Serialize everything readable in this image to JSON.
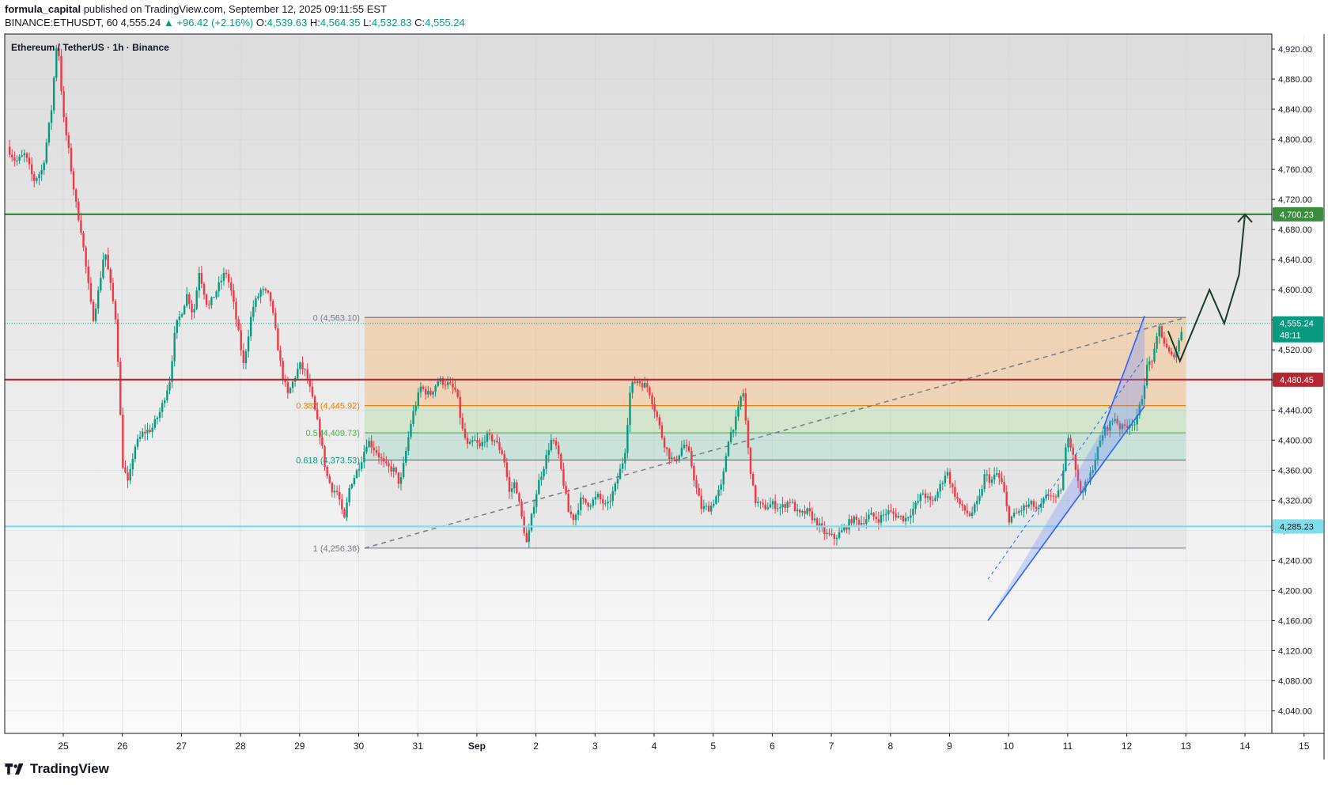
{
  "header": {
    "author": "formula_capital",
    "published": " published on TradingView.com, September 12, 2025 09:11:55 EST",
    "symbol": "BINANCE:ETHUSDT, 60",
    "last": "4,555.24",
    "change": "▲ +96.42 (+2.16%)",
    "o_label": "O:",
    "o": "4,539.63",
    "h_label": "H:",
    "h": "4,564.35",
    "l_label": "L:",
    "l": "4,532.83",
    "c_label": "C:",
    "c": "4,555.24"
  },
  "chart_title": "Ethereum / TetherUS · 1h · Binance",
  "footer": {
    "brand": "TradingView",
    "logo_icon": "tradingview-logo-icon"
  },
  "chart_data": {
    "type": "candlestick",
    "title": "Ethereum / TetherUS · 1h · Binance",
    "ylim": [
      4010,
      4940
    ],
    "y_ticks": [
      4040,
      4080,
      4120,
      4160,
      4200,
      4240,
      4280,
      4320,
      4360,
      4400,
      4440,
      4480,
      4520,
      4560,
      4600,
      4640,
      4680,
      4720,
      4760,
      4800,
      4840,
      4880,
      4920
    ],
    "y_tick_labels": [
      "4,040.00",
      "4,080.00",
      "4,120.00",
      "4,160.00",
      "4,200.00",
      "4,240.00",
      "4,280.00",
      "4,320.00",
      "4,360.00",
      "4,400.00",
      "4,440.00",
      "4,480.00",
      "4,520.00",
      "4,560.00",
      "4,600.00",
      "4,640.00",
      "4,680.00",
      "4,720.00",
      "4,760.00",
      "4,800.00",
      "4,840.00",
      "4,880.00",
      "4,920.00"
    ],
    "x_labels": [
      "25",
      "26",
      "27",
      "28",
      "29",
      "30",
      "31",
      "Sep",
      "2",
      "3",
      "4",
      "5",
      "6",
      "7",
      "8",
      "9",
      "10",
      "11",
      "12",
      "13",
      "14",
      "15"
    ],
    "x_label_days": [
      0,
      1,
      2,
      3,
      4,
      5,
      6,
      7,
      8,
      9,
      10,
      11,
      12,
      13,
      14,
      15,
      16,
      17,
      18,
      19,
      20,
      21
    ],
    "x_range_days": [
      -0.98,
      21.3
    ],
    "grid": true,
    "colors": {
      "up": "#089981",
      "down": "#f23645",
      "resistance": "#b22833",
      "target": "#388e3c",
      "support": "#80deea",
      "channel": "#2962ff"
    },
    "price_path": [
      [
        -0.95,
        4790
      ],
      [
        -0.8,
        4770
      ],
      [
        -0.65,
        4780
      ],
      [
        -0.5,
        4745
      ],
      [
        -0.35,
        4760
      ],
      [
        -0.2,
        4840
      ],
      [
        -0.1,
        4940
      ],
      [
        0.0,
        4830
      ],
      [
        0.1,
        4780
      ],
      [
        0.2,
        4720
      ],
      [
        0.3,
        4680
      ],
      [
        0.4,
        4620
      ],
      [
        0.5,
        4560
      ],
      [
        0.6,
        4600
      ],
      [
        0.7,
        4655
      ],
      [
        0.8,
        4605
      ],
      [
        0.9,
        4555
      ],
      [
        1.0,
        4370
      ],
      [
        1.1,
        4340
      ],
      [
        1.2,
        4390
      ],
      [
        1.35,
        4410
      ],
      [
        1.5,
        4415
      ],
      [
        1.65,
        4440
      ],
      [
        1.8,
        4480
      ],
      [
        1.9,
        4550
      ],
      [
        2.0,
        4570
      ],
      [
        2.1,
        4595
      ],
      [
        2.2,
        4565
      ],
      [
        2.3,
        4625
      ],
      [
        2.45,
        4575
      ],
      [
        2.6,
        4600
      ],
      [
        2.75,
        4625
      ],
      [
        2.85,
        4595
      ],
      [
        2.95,
        4550
      ],
      [
        3.05,
        4500
      ],
      [
        3.2,
        4575
      ],
      [
        3.35,
        4600
      ],
      [
        3.5,
        4590
      ],
      [
        3.6,
        4540
      ],
      [
        3.7,
        4490
      ],
      [
        3.8,
        4460
      ],
      [
        3.9,
        4480
      ],
      [
        4.0,
        4500
      ],
      [
        4.1,
        4490
      ],
      [
        4.2,
        4460
      ],
      [
        4.35,
        4405
      ],
      [
        4.45,
        4355
      ],
      [
        4.55,
        4335
      ],
      [
        4.65,
        4330
      ],
      [
        4.75,
        4290
      ],
      [
        4.85,
        4340
      ],
      [
        4.95,
        4355
      ],
      [
        5.05,
        4375
      ],
      [
        5.15,
        4400
      ],
      [
        5.3,
        4385
      ],
      [
        5.45,
        4365
      ],
      [
        5.6,
        4360
      ],
      [
        5.7,
        4340
      ],
      [
        5.8,
        4385
      ],
      [
        5.9,
        4430
      ],
      [
        6.05,
        4470
      ],
      [
        6.2,
        4460
      ],
      [
        6.35,
        4480
      ],
      [
        6.5,
        4475
      ],
      [
        6.65,
        4465
      ],
      [
        6.75,
        4415
      ],
      [
        6.85,
        4390
      ],
      [
        6.95,
        4400
      ],
      [
        7.05,
        4390
      ],
      [
        7.15,
        4405
      ],
      [
        7.3,
        4400
      ],
      [
        7.45,
        4380
      ],
      [
        7.55,
        4330
      ],
      [
        7.65,
        4345
      ],
      [
        7.75,
        4300
      ],
      [
        7.85,
        4260
      ],
      [
        7.95,
        4310
      ],
      [
        8.05,
        4345
      ],
      [
        8.15,
        4370
      ],
      [
        8.25,
        4400
      ],
      [
        8.35,
        4390
      ],
      [
        8.45,
        4350
      ],
      [
        8.55,
        4305
      ],
      [
        8.65,
        4295
      ],
      [
        8.75,
        4320
      ],
      [
        8.9,
        4315
      ],
      [
        9.05,
        4325
      ],
      [
        9.2,
        4310
      ],
      [
        9.35,
        4340
      ],
      [
        9.5,
        4380
      ],
      [
        9.6,
        4470
      ],
      [
        9.7,
        4480
      ],
      [
        9.8,
        4475
      ],
      [
        9.9,
        4470
      ],
      [
        10.05,
        4430
      ],
      [
        10.15,
        4400
      ],
      [
        10.25,
        4380
      ],
      [
        10.35,
        4370
      ],
      [
        10.5,
        4395
      ],
      [
        10.6,
        4380
      ],
      [
        10.7,
        4340
      ],
      [
        10.8,
        4310
      ],
      [
        10.95,
        4310
      ],
      [
        11.05,
        4325
      ],
      [
        11.15,
        4340
      ],
      [
        11.25,
        4400
      ],
      [
        11.4,
        4430
      ],
      [
        11.5,
        4470
      ],
      [
        11.6,
        4380
      ],
      [
        11.7,
        4320
      ],
      [
        11.85,
        4310
      ],
      [
        12.0,
        4315
      ],
      [
        12.15,
        4310
      ],
      [
        12.3,
        4320
      ],
      [
        12.45,
        4300
      ],
      [
        12.6,
        4305
      ],
      [
        12.75,
        4290
      ],
      [
        12.9,
        4275
      ],
      [
        13.05,
        4270
      ],
      [
        13.2,
        4280
      ],
      [
        13.35,
        4295
      ],
      [
        13.5,
        4290
      ],
      [
        13.65,
        4300
      ],
      [
        13.8,
        4295
      ],
      [
        13.95,
        4305
      ],
      [
        14.1,
        4300
      ],
      [
        14.25,
        4295
      ],
      [
        14.4,
        4310
      ],
      [
        14.55,
        4330
      ],
      [
        14.7,
        4315
      ],
      [
        14.85,
        4340
      ],
      [
        14.95,
        4360
      ],
      [
        15.05,
        4335
      ],
      [
        15.2,
        4310
      ],
      [
        15.35,
        4300
      ],
      [
        15.5,
        4320
      ],
      [
        15.6,
        4355
      ],
      [
        15.7,
        4345
      ],
      [
        15.8,
        4355
      ],
      [
        15.9,
        4340
      ],
      [
        16.0,
        4295
      ],
      [
        16.1,
        4300
      ],
      [
        16.25,
        4310
      ],
      [
        16.4,
        4315
      ],
      [
        16.5,
        4305
      ],
      [
        16.6,
        4320
      ],
      [
        16.7,
        4330
      ],
      [
        16.8,
        4320
      ],
      [
        16.9,
        4340
      ],
      [
        17.0,
        4410
      ],
      [
        17.1,
        4380
      ],
      [
        17.2,
        4330
      ],
      [
        17.35,
        4345
      ],
      [
        17.5,
        4385
      ],
      [
        17.6,
        4410
      ],
      [
        17.7,
        4420
      ],
      [
        17.8,
        4430
      ],
      [
        17.9,
        4415
      ],
      [
        18.0,
        4420
      ],
      [
        18.1,
        4425
      ],
      [
        18.15,
        4420
      ],
      [
        18.25,
        4455
      ],
      [
        18.35,
        4500
      ],
      [
        18.45,
        4510
      ],
      [
        18.55,
        4550
      ],
      [
        18.65,
        4525
      ],
      [
        18.75,
        4510
      ],
      [
        18.85,
        4520
      ],
      [
        18.95,
        4555
      ]
    ],
    "levels": [
      {
        "value": 4700.23,
        "label": "4,700.23",
        "color": "#388e3c"
      },
      {
        "value": 4480.45,
        "label": "4,480.45",
        "color": "#b22833"
      },
      {
        "value": 4285.23,
        "label": "4,285.23",
        "color": "#80deea"
      }
    ],
    "last_price": {
      "value": 4555.24,
      "label": "4,555.24",
      "countdown": "48:11"
    },
    "fibonacci": [
      {
        "label": "0 (4,563.10)",
        "value": 4563.1,
        "color": "#787b86"
      },
      {
        "label": "0.382 (4,445.92)",
        "value": 4445.92,
        "color": "#f57c00"
      },
      {
        "label": "0.5 (4,409.73)",
        "value": 4409.73,
        "color": "#4caf50"
      },
      {
        "label": "0.618 (4,373.53)",
        "value": 4373.53,
        "color": "#089981"
      },
      {
        "label": "1 (4,256.36)",
        "value": 4256.36,
        "color": "#787b86"
      }
    ],
    "fib_range_days": [
      5.1,
      19.0
    ],
    "channel": {
      "upper": [
        [
          17.6,
          4415
        ],
        [
          18.3,
          4565
        ]
      ],
      "lower": [
        [
          15.65,
          4160
        ],
        [
          18.3,
          4445
        ]
      ],
      "mid": [
        [
          15.65,
          4215
        ],
        [
          18.3,
          4510
        ]
      ]
    },
    "trendline": [
      [
        5.1,
        4256.36
      ],
      [
        19.0,
        4563.1
      ]
    ],
    "projection": [
      [
        18.7,
        4545
      ],
      [
        18.9,
        4505
      ],
      [
        19.4,
        4600
      ],
      [
        19.65,
        4555
      ],
      [
        19.9,
        4620
      ],
      [
        20.0,
        4700.23
      ]
    ]
  }
}
